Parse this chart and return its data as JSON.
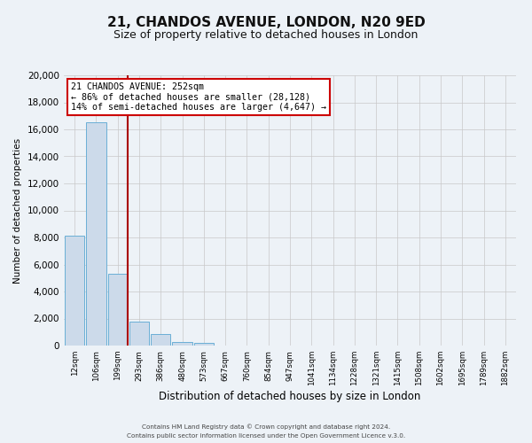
{
  "title": "21, CHANDOS AVENUE, LONDON, N20 9ED",
  "subtitle": "Size of property relative to detached houses in London",
  "xlabel": "Distribution of detached houses by size in London",
  "ylabel": "Number of detached properties",
  "bar_labels": [
    "12sqm",
    "106sqm",
    "199sqm",
    "293sqm",
    "386sqm",
    "480sqm",
    "573sqm",
    "667sqm",
    "760sqm",
    "854sqm",
    "947sqm",
    "1041sqm",
    "1134sqm",
    "1228sqm",
    "1321sqm",
    "1415sqm",
    "1508sqm",
    "1602sqm",
    "1695sqm",
    "1789sqm",
    "1882sqm"
  ],
  "bar_values": [
    8100,
    16500,
    5300,
    1750,
    820,
    290,
    220,
    0,
    0,
    0,
    0,
    0,
    0,
    0,
    0,
    0,
    0,
    0,
    0,
    0,
    0
  ],
  "bar_color": "#ccdaea",
  "bar_edge_color": "#6aafd6",
  "ylim": [
    0,
    20000
  ],
  "yticks": [
    0,
    2000,
    4000,
    6000,
    8000,
    10000,
    12000,
    14000,
    16000,
    18000,
    20000
  ],
  "vline_x": 2.48,
  "vline_color": "#aa0000",
  "annotation_title": "21 CHANDOS AVENUE: 252sqm",
  "annotation_line1": "← 86% of detached houses are smaller (28,128)",
  "annotation_line2": "14% of semi-detached houses are larger (4,647) →",
  "annotation_box_color": "#ffffff",
  "annotation_box_edge": "#cc0000",
  "footer1": "Contains HM Land Registry data © Crown copyright and database right 2024.",
  "footer2": "Contains public sector information licensed under the Open Government Licence v.3.0.",
  "background_color": "#edf2f7",
  "grid_color": "#c8c8c8",
  "title_fontsize": 11,
  "subtitle_fontsize": 9
}
